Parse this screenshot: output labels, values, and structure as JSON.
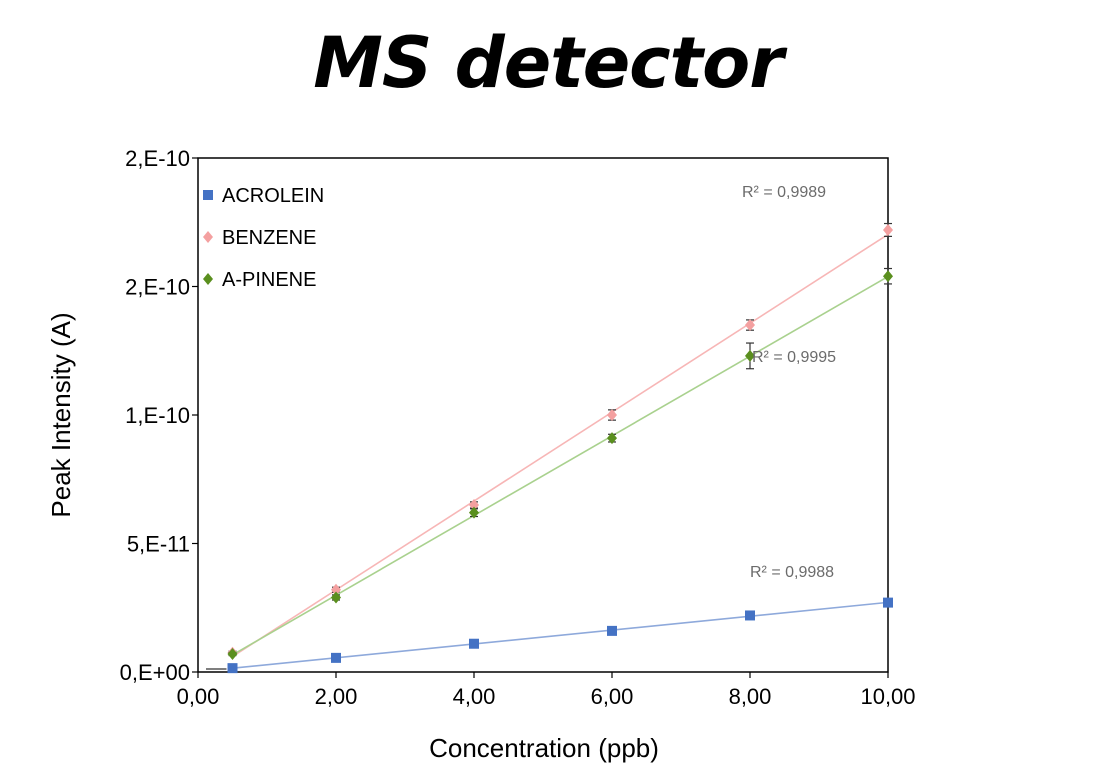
{
  "title": "MS detector",
  "chart_data": {
    "type": "scatter",
    "xlabel": "Concentration (ppb)",
    "ylabel": "Peak Intensity (A)",
    "xlim": [
      0,
      10
    ],
    "ylim": [
      0,
      2e-10
    ],
    "x_tick_labels": [
      "0,00",
      "2,00",
      "4,00",
      "6,00",
      "8,00",
      "10,00"
    ],
    "y_tick_labels": [
      "0,E+00",
      "5,E-11",
      "1,E-10",
      "2,E-10",
      "2,E-10"
    ],
    "legend_position": "top-left",
    "grid": false,
    "series": [
      {
        "name": "ACROLEIN",
        "marker": "square",
        "color": "#4472c4",
        "line_color": "#8ea9db",
        "x": [
          0.5,
          2,
          4,
          6,
          8,
          10
        ],
        "y": [
          1.5e-12,
          5.5e-12,
          1.1e-11,
          1.6e-11,
          2.2e-11,
          2.7e-11
        ],
        "error": [
          5e-13,
          6e-13,
          7e-13,
          7e-13,
          8e-13,
          8e-13
        ],
        "r2_label": "R² = 0,9988"
      },
      {
        "name": "BENZENE",
        "marker": "diamond",
        "color": "#f4a0a0",
        "line_color": "#f7b6b6",
        "x": [
          0.5,
          2,
          4,
          6,
          8,
          10
        ],
        "y": [
          7.5e-12,
          3.2e-11,
          6.5e-11,
          1e-10,
          1.35e-10,
          1.72e-10
        ],
        "error": [
          6e-13,
          1e-12,
          1.2e-12,
          2e-12,
          2e-12,
          2.5e-12
        ],
        "r2_label": "R² = 0,9989"
      },
      {
        "name": "A-PINENE",
        "marker": "diamond",
        "color": "#5a8f1e",
        "line_color": "#a9d18e",
        "x": [
          0.5,
          2,
          4,
          6,
          8,
          10
        ],
        "y": [
          7e-12,
          2.9e-11,
          6.2e-11,
          9.1e-11,
          1.23e-10,
          1.54e-10
        ],
        "error": [
          6e-13,
          1e-12,
          1.5e-12,
          1.5e-12,
          5e-12,
          3e-12
        ],
        "r2_label": "R² = 0,9995"
      }
    ]
  }
}
